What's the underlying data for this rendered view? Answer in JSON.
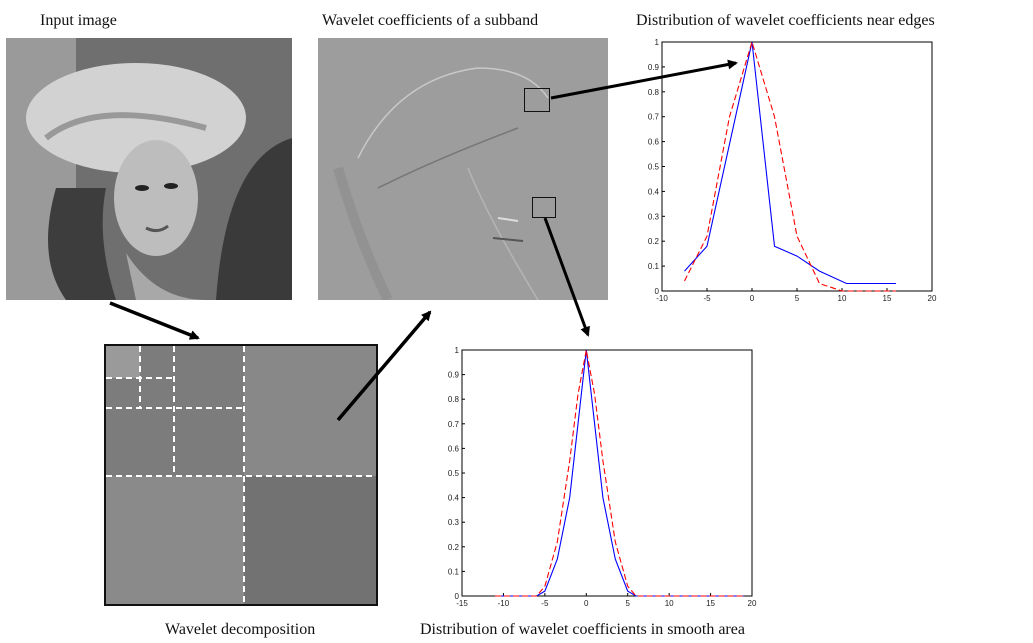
{
  "captions": {
    "input": "Input image",
    "subband": "Wavelet coefficients of a subband",
    "edges": "Distribution of wavelet coefficients near edges",
    "decomposition": "Wavelet decomposition",
    "smooth": "Distribution of wavelet coefficients in smooth area"
  },
  "colors": {
    "blue_series": "#0000ff",
    "red_series": "#ff0000",
    "arrow": "#000000",
    "dashed_grid": "#ffffff"
  },
  "chart_data": [
    {
      "type": "line",
      "xlim": [
        -10,
        20
      ],
      "ylim": [
        0,
        1
      ],
      "xticks": [
        "-10",
        "-5",
        "0",
        "5",
        "10",
        "15",
        "20"
      ],
      "yticks": [
        "0",
        "0.1",
        "0.2",
        "0.3",
        "0.4",
        "0.5",
        "0.6",
        "0.7",
        "0.8",
        "0.9",
        "1"
      ],
      "series": [
        {
          "color": "#0000ff",
          "dash": "solid",
          "x": [
            -7.5,
            -5,
            0,
            2.5,
            5,
            7.5,
            10.5,
            16
          ],
          "y": [
            0.08,
            0.18,
            1.0,
            0.18,
            0.14,
            0.08,
            0.03,
            0.03
          ]
        },
        {
          "color": "#ff0000",
          "dash": "dashed",
          "x": [
            -7.5,
            -5,
            -2.5,
            0,
            2.5,
            5,
            7.5,
            10,
            16
          ],
          "y": [
            0.04,
            0.22,
            0.7,
            1.0,
            0.7,
            0.22,
            0.03,
            0.0,
            0.0
          ]
        }
      ]
    },
    {
      "type": "line",
      "xlim": [
        -15,
        20
      ],
      "ylim": [
        0,
        1
      ],
      "xticks": [
        "-15",
        "-10",
        "-5",
        "0",
        "5",
        "10",
        "15",
        "20"
      ],
      "yticks": [
        "0",
        "0.1",
        "0.2",
        "0.3",
        "0.4",
        "0.5",
        "0.6",
        "0.7",
        "0.8",
        "0.9",
        "1"
      ],
      "series": [
        {
          "color": "#0000ff",
          "dash": "solid",
          "x": [
            -11,
            -8,
            -6,
            -5,
            -3.5,
            -2,
            -1,
            0,
            1,
            2,
            3.5,
            5,
            6,
            8,
            11,
            19
          ],
          "y": [
            0.0,
            0.0,
            0.0,
            0.02,
            0.15,
            0.4,
            0.7,
            1.0,
            0.7,
            0.4,
            0.15,
            0.02,
            0.0,
            0.0,
            0.0,
            0.0
          ]
        },
        {
          "color": "#ff0000",
          "dash": "dashed",
          "x": [
            -11,
            -8,
            -6,
            -5,
            -3.5,
            -2,
            -1,
            0,
            1,
            2,
            3.5,
            5,
            6,
            8,
            11,
            19
          ],
          "y": [
            0.0,
            0.0,
            0.0,
            0.04,
            0.22,
            0.55,
            0.82,
            1.0,
            0.82,
            0.55,
            0.22,
            0.04,
            0.0,
            0.0,
            0.0,
            0.0
          ]
        }
      ]
    }
  ]
}
